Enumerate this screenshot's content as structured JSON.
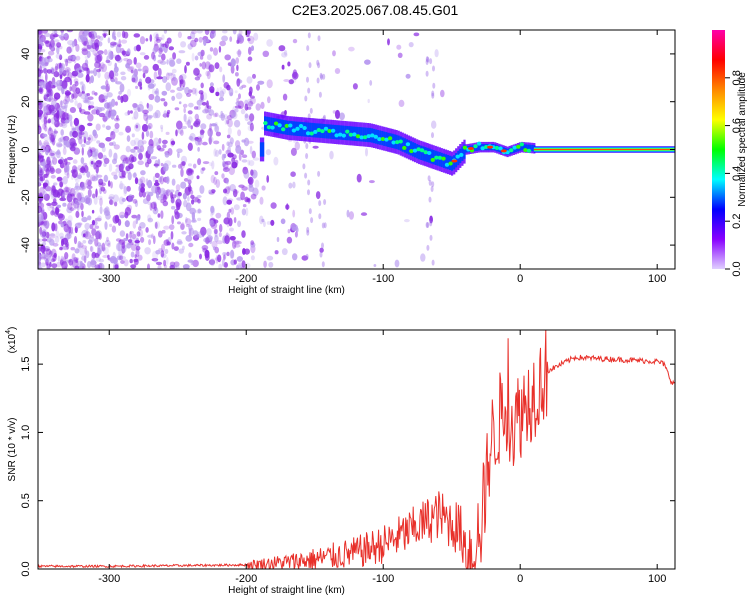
{
  "title": "C2E3.2025.067.08.45.G01",
  "chart_data": [
    {
      "type": "heatmap",
      "xlabel": "Height of straight line (km)",
      "ylabel": "Frequency (Hz)",
      "xlim": [
        -352,
        113
      ],
      "ylim": [
        -50,
        50
      ],
      "xticks": [
        -300,
        -200,
        -100,
        0,
        100
      ],
      "yticks": [
        -40,
        -20,
        0,
        20,
        40
      ],
      "colorbar": {
        "label": "Normalized spectral amplitude",
        "range": [
          0.0,
          1.0
        ],
        "ticks": [
          "0.0",
          "0.2",
          "0.4",
          "0.6",
          "0.8"
        ],
        "colormap": [
          "#e0d0ff",
          "#8800ff",
          "#0000ff",
          "#00ffff",
          "#00ff00",
          "#ffff00",
          "#ff8800",
          "#ff0000",
          "#ff00aa"
        ]
      },
      "signal_track": {
        "x": [
          -188,
          -170,
          -150,
          -130,
          -110,
          -90,
          -75,
          -60,
          -50,
          -40,
          -30,
          -20,
          -10,
          0,
          20,
          60,
          113
        ],
        "y": [
          11,
          9,
          8,
          7,
          6,
          3,
          -1,
          -4,
          -6,
          0,
          1,
          1,
          -1,
          1,
          0,
          0,
          0
        ]
      },
      "grid": false
    },
    {
      "type": "line",
      "xlabel": "Height of straight line (km)",
      "ylabel": "SNR (10 * v/v)",
      "yscale_label": "(x10",
      "yscale_exp": "4",
      "xlim": [
        -352,
        113
      ],
      "ylim": [
        0,
        1.75
      ],
      "xticks": [
        -300,
        -200,
        -100,
        0,
        100
      ],
      "yticks": [
        "0.0",
        "0.5",
        "1.0",
        "1.5"
      ],
      "series": [
        {
          "color": "#e8302a",
          "x": [
            -352,
            -300,
            -250,
            -200,
            -170,
            -150,
            -120,
            -100,
            -80,
            -60,
            -45,
            -35,
            -28,
            -22,
            -15,
            -10,
            -5,
            0,
            10,
            20,
            30,
            40,
            60,
            80,
            100,
            105,
            110,
            113
          ],
          "y": [
            0.02,
            0.02,
            0.025,
            0.03,
            0.05,
            0.07,
            0.12,
            0.18,
            0.28,
            0.4,
            0.3,
            0.08,
            0.35,
            0.9,
            1.1,
            1.2,
            1.05,
            1.15,
            1.3,
            1.45,
            1.5,
            1.55,
            1.54,
            1.53,
            1.52,
            1.5,
            1.38,
            1.35
          ]
        }
      ],
      "grid": false
    }
  ]
}
